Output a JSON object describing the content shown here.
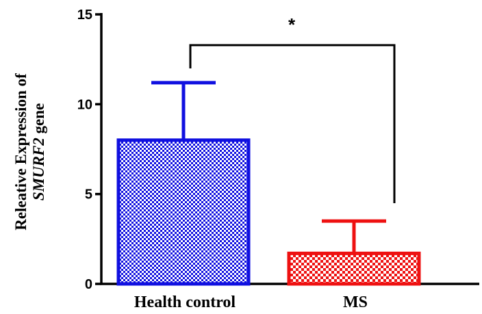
{
  "chart_data": {
    "type": "bar",
    "categories": [
      "Health control",
      "MS"
    ],
    "values": [
      8.0,
      1.7
    ],
    "errors": [
      3.2,
      1.8
    ],
    "colors": [
      "#1010e0",
      "#ee1111"
    ],
    "ylabel_line1": "Releative Expression of",
    "ylabel_gene": "SMURF2",
    "ylabel_suffix": " gene",
    "ylim": [
      0,
      15
    ],
    "yticks": [
      "0",
      "5",
      "10",
      "15"
    ],
    "significance": "*",
    "grid": false,
    "legend": "none"
  }
}
